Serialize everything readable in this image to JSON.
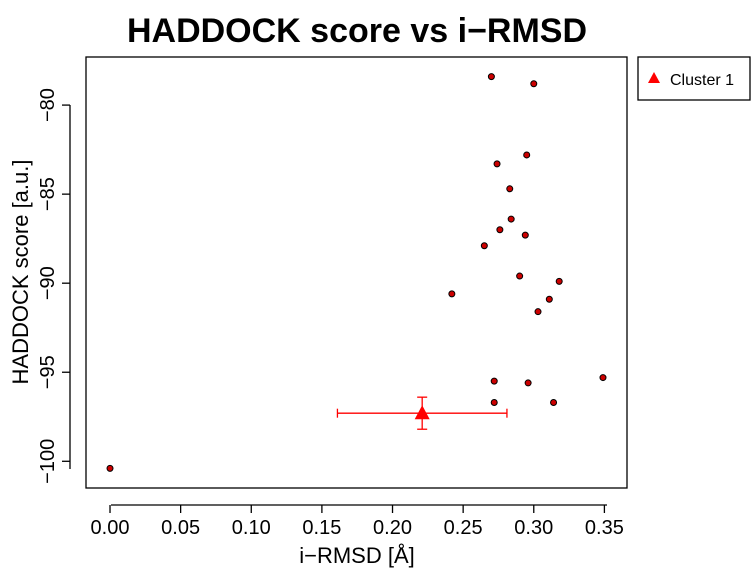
{
  "chart_data": {
    "type": "scatter",
    "title": "HADDOCK score vs i−RMSD",
    "xlabel": "i−RMSD [Å]",
    "ylabel": "HADDOCK score [a.u.]",
    "xlim": [
      -0.017,
      0.366
    ],
    "ylim": [
      -101.5,
      -77.3
    ],
    "xticks": [
      0.0,
      0.05,
      0.1,
      0.15,
      0.2,
      0.25,
      0.3,
      0.35
    ],
    "xtick_labels": [
      "0.00",
      "0.05",
      "0.10",
      "0.15",
      "0.20",
      "0.25",
      "0.30",
      "0.35"
    ],
    "yticks": [
      -80,
      -85,
      -90,
      -95,
      -100
    ],
    "ytick_labels": [
      "−80",
      "−85",
      "−90",
      "−95",
      "−100"
    ],
    "grid": false,
    "legend_position": "outside-top-right",
    "points": [
      {
        "x": 0.27,
        "y": -78.4
      },
      {
        "x": 0.3,
        "y": -78.8
      },
      {
        "x": 0.295,
        "y": -82.8
      },
      {
        "x": 0.274,
        "y": -83.3
      },
      {
        "x": 0.283,
        "y": -84.7
      },
      {
        "x": 0.284,
        "y": -86.4
      },
      {
        "x": 0.276,
        "y": -87.0
      },
      {
        "x": 0.294,
        "y": -87.3
      },
      {
        "x": 0.265,
        "y": -87.9
      },
      {
        "x": 0.29,
        "y": -89.6
      },
      {
        "x": 0.318,
        "y": -89.9
      },
      {
        "x": 0.242,
        "y": -90.6
      },
      {
        "x": 0.311,
        "y": -90.9
      },
      {
        "x": 0.303,
        "y": -91.6
      },
      {
        "x": 0.349,
        "y": -95.3
      },
      {
        "x": 0.272,
        "y": -95.5
      },
      {
        "x": 0.296,
        "y": -95.6
      },
      {
        "x": 0.272,
        "y": -96.7
      },
      {
        "x": 0.314,
        "y": -96.7
      },
      {
        "x": 0.0,
        "y": -100.4
      }
    ],
    "point_fill": "#cc0000",
    "cluster": {
      "name": "Cluster 1",
      "x": 0.221,
      "y": -97.3,
      "x_err": 0.06,
      "y_err": 0.9,
      "color": "#ff0000"
    }
  }
}
